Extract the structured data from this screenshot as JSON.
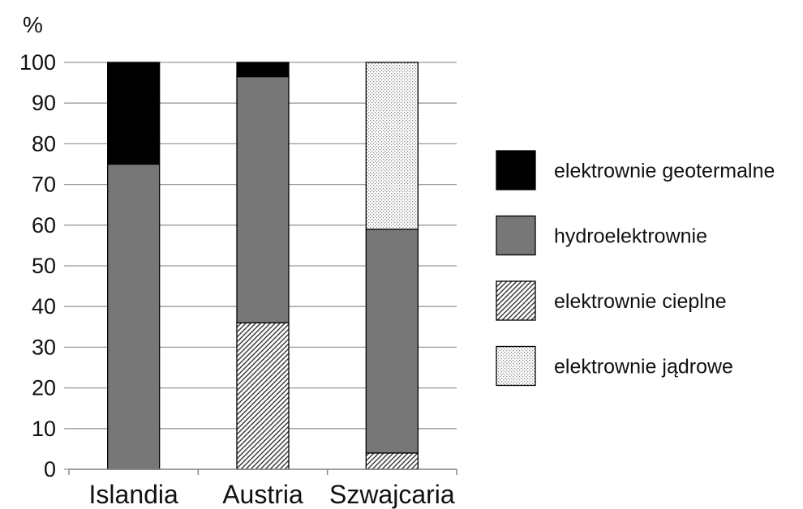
{
  "chart_data": {
    "type": "bar",
    "stacked": true,
    "unit": "%",
    "categories": [
      "Islandia",
      "Austria",
      "Szwajcaria"
    ],
    "series": [
      {
        "name": "elektrownie cieplne",
        "values": [
          0,
          36,
          4
        ],
        "pattern": "diagonal-hatch"
      },
      {
        "name": "hydroelektrownie",
        "values": [
          75,
          60.5,
          55
        ],
        "color": "#777777"
      },
      {
        "name": "elektrownie jądrowe",
        "values": [
          0,
          0,
          41
        ],
        "pattern": "dots"
      },
      {
        "name": "elektrownie geotermalne",
        "values": [
          25,
          3.5,
          0
        ],
        "color": "#000000"
      }
    ],
    "legend_order": [
      "elektrownie geotermalne",
      "hydroelektrownie",
      "elektrownie cieplne",
      "elektrownie jądrowe"
    ],
    "ylim": [
      0,
      100
    ],
    "yticks": [
      0,
      10,
      20,
      30,
      40,
      50,
      60,
      70,
      80,
      90,
      100
    ],
    "grid": true,
    "legend_position": "right"
  }
}
